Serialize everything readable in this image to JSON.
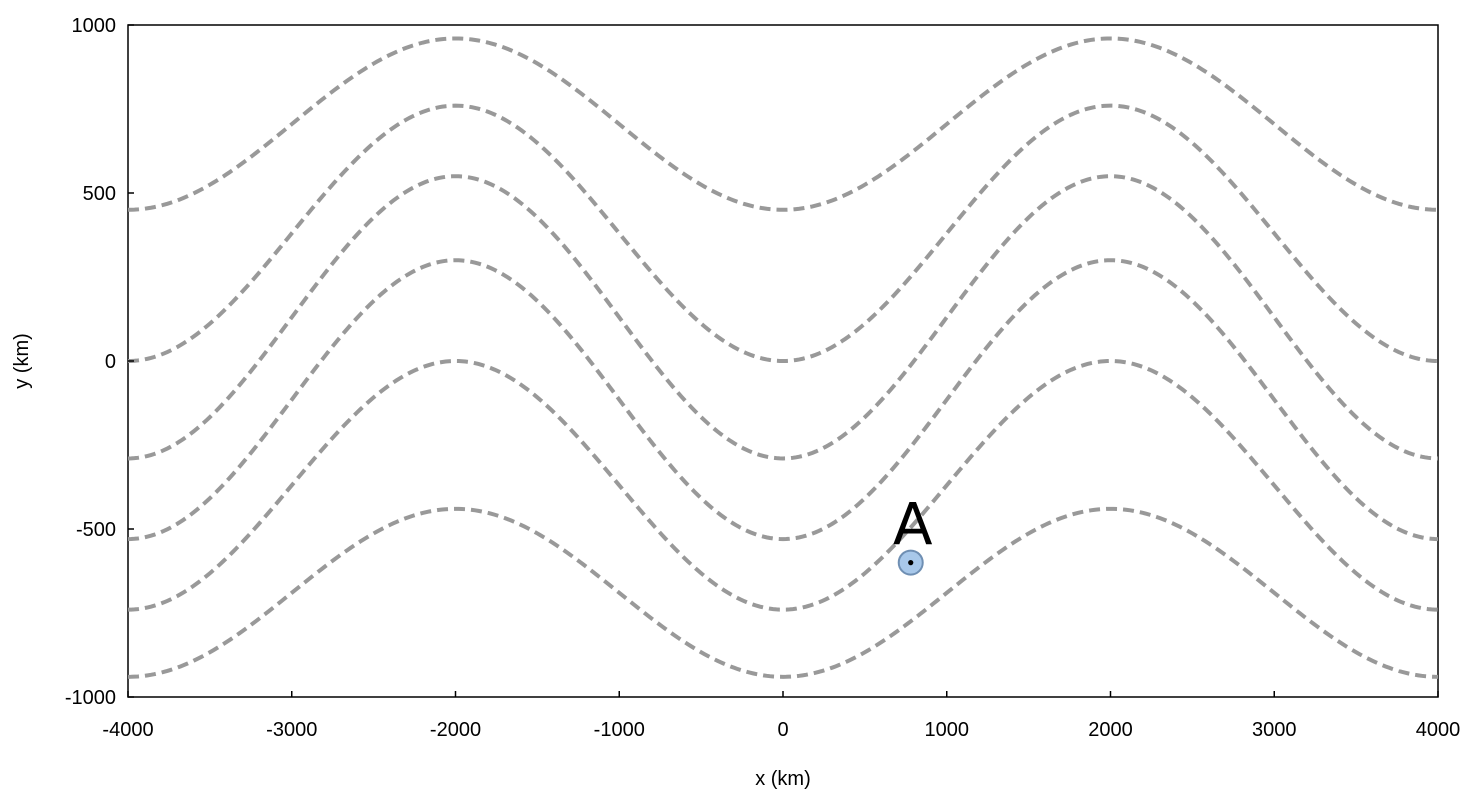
{
  "chart_data": {
    "type": "line",
    "title": "",
    "xlabel": "x (km)",
    "ylabel": "y (km)",
    "xlim": [
      -4000,
      4000
    ],
    "ylim": [
      -1000,
      1000
    ],
    "x_ticks": [
      -4000,
      -3000,
      -2000,
      -1000,
      0,
      1000,
      2000,
      3000,
      4000
    ],
    "y_ticks": [
      1000,
      500,
      0,
      -500,
      -1000
    ],
    "x_tick_labels": [
      "-4000",
      "-3000",
      "-2000",
      "-1000",
      "0",
      "1000",
      "2000",
      "3000",
      "4000"
    ],
    "y_tick_labels": [
      "1000",
      "500",
      "0",
      "-500",
      "-1000"
    ],
    "grid": false,
    "legend": "none",
    "line_style": "dashed",
    "line_color": "#999999",
    "wavelength_km": 4000,
    "crest_x_km": -2000,
    "series": [
      {
        "crest_y": 960,
        "trough_y": 450
      },
      {
        "crest_y": 760,
        "trough_y": 0
      },
      {
        "crest_y": 550,
        "trough_y": -290
      },
      {
        "crest_y": 300,
        "trough_y": -530
      },
      {
        "crest_y": 0,
        "trough_y": -740
      },
      {
        "crest_y": -440,
        "trough_y": -940
      }
    ],
    "points": [
      {
        "label": "A",
        "x": 780,
        "y": -600,
        "fill": "#a8c8ea",
        "stroke": "#6f8fb3"
      }
    ]
  }
}
